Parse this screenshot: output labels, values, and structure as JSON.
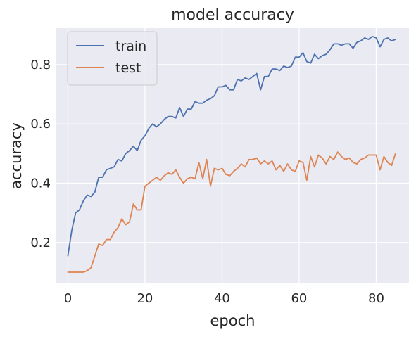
{
  "chart_data": {
    "type": "line",
    "title": "model accuracy",
    "xlabel": "epoch",
    "ylabel": "accuracy",
    "xlim": [
      -3,
      88.5
    ],
    "ylim": [
      0.062,
      0.923
    ],
    "xticks": [
      0,
      20,
      40,
      60,
      80
    ],
    "yticks": [
      0.2,
      0.4,
      0.6,
      0.8
    ],
    "xtick_labels": [
      "0",
      "20",
      "40",
      "60",
      "80"
    ],
    "ytick_labels": [
      "0.2",
      "0.4",
      "0.6",
      "0.8"
    ],
    "grid": true,
    "legend_position": "top-left",
    "style": {
      "background": "#eaeaf2",
      "grid_color": "#ffffff"
    },
    "series": [
      {
        "name": "train",
        "color": "#4c72b0",
        "x": [
          0,
          1,
          2,
          3,
          4,
          5,
          6,
          7,
          8,
          9,
          10,
          11,
          12,
          13,
          14,
          15,
          16,
          17,
          18,
          19,
          20,
          21,
          22,
          23,
          24,
          25,
          26,
          27,
          28,
          29,
          30,
          31,
          32,
          33,
          34,
          35,
          36,
          37,
          38,
          39,
          40,
          41,
          42,
          43,
          44,
          45,
          46,
          47,
          48,
          49,
          50,
          51,
          52,
          53,
          54,
          55,
          56,
          57,
          58,
          59,
          60,
          61,
          62,
          63,
          64,
          65,
          66,
          67,
          68,
          69,
          70,
          71,
          72,
          73,
          74,
          75,
          76,
          77,
          78,
          79,
          80,
          81,
          82,
          83,
          84,
          85
        ],
        "values": [
          0.155,
          0.24,
          0.3,
          0.31,
          0.34,
          0.36,
          0.355,
          0.37,
          0.42,
          0.42,
          0.445,
          0.45,
          0.455,
          0.48,
          0.475,
          0.5,
          0.51,
          0.525,
          0.51,
          0.545,
          0.56,
          0.585,
          0.6,
          0.59,
          0.6,
          0.615,
          0.625,
          0.625,
          0.62,
          0.655,
          0.625,
          0.65,
          0.65,
          0.675,
          0.67,
          0.67,
          0.68,
          0.685,
          0.695,
          0.725,
          0.725,
          0.73,
          0.715,
          0.715,
          0.75,
          0.745,
          0.755,
          0.75,
          0.76,
          0.77,
          0.715,
          0.76,
          0.76,
          0.785,
          0.785,
          0.78,
          0.795,
          0.79,
          0.795,
          0.825,
          0.825,
          0.84,
          0.81,
          0.805,
          0.835,
          0.82,
          0.83,
          0.835,
          0.85,
          0.87,
          0.87,
          0.865,
          0.87,
          0.87,
          0.855,
          0.875,
          0.88,
          0.89,
          0.885,
          0.895,
          0.89,
          0.86,
          0.885,
          0.89,
          0.88,
          0.885
        ]
      },
      {
        "name": "test",
        "color": "#dd8452",
        "x": [
          0,
          1,
          2,
          3,
          4,
          5,
          6,
          7,
          8,
          9,
          10,
          11,
          12,
          13,
          14,
          15,
          16,
          17,
          18,
          19,
          20,
          21,
          22,
          23,
          24,
          25,
          26,
          27,
          28,
          29,
          30,
          31,
          32,
          33,
          34,
          35,
          36,
          37,
          38,
          39,
          40,
          41,
          42,
          43,
          44,
          45,
          46,
          47,
          48,
          49,
          50,
          51,
          52,
          53,
          54,
          55,
          56,
          57,
          58,
          59,
          60,
          61,
          62,
          63,
          64,
          65,
          66,
          67,
          68,
          69,
          70,
          71,
          72,
          73,
          74,
          75,
          76,
          77,
          78,
          79,
          80,
          81,
          82,
          83,
          84,
          85
        ],
        "values": [
          0.1,
          0.1,
          0.1,
          0.1,
          0.1,
          0.105,
          0.115,
          0.155,
          0.195,
          0.19,
          0.21,
          0.21,
          0.235,
          0.25,
          0.28,
          0.26,
          0.27,
          0.33,
          0.31,
          0.31,
          0.39,
          0.4,
          0.41,
          0.42,
          0.41,
          0.425,
          0.435,
          0.43,
          0.445,
          0.42,
          0.4,
          0.415,
          0.42,
          0.415,
          0.47,
          0.415,
          0.48,
          0.39,
          0.45,
          0.445,
          0.45,
          0.43,
          0.425,
          0.44,
          0.45,
          0.465,
          0.455,
          0.48,
          0.48,
          0.485,
          0.465,
          0.475,
          0.465,
          0.475,
          0.445,
          0.46,
          0.44,
          0.465,
          0.445,
          0.44,
          0.475,
          0.47,
          0.41,
          0.49,
          0.455,
          0.495,
          0.485,
          0.465,
          0.49,
          0.48,
          0.505,
          0.49,
          0.48,
          0.485,
          0.47,
          0.465,
          0.48,
          0.485,
          0.495,
          0.495,
          0.495,
          0.445,
          0.49,
          0.47,
          0.46,
          0.5
        ]
      }
    ]
  }
}
